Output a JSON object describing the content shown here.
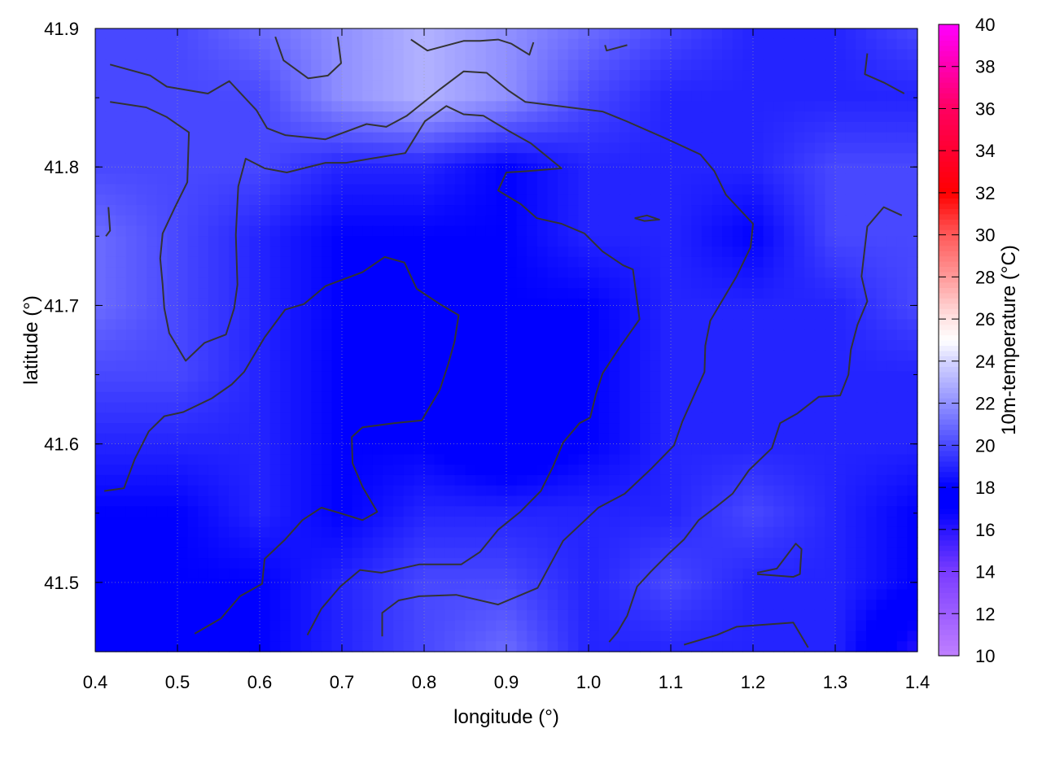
{
  "chart_data": {
    "type": "heatmap",
    "xlabel": "longitude (°)",
    "ylabel": "latitude (°)",
    "colorbar_label": "10m-temperature (°C)",
    "xlim": [
      0.4,
      1.4
    ],
    "ylim": [
      41.45,
      41.9
    ],
    "x_ticks": [
      "0.4",
      "0.5",
      "0.6",
      "0.7",
      "0.8",
      "0.9",
      "1.0",
      "1.1",
      "1.2",
      "1.3",
      "1.4"
    ],
    "y_ticks": [
      "41.5",
      "41.6",
      "41.7",
      "41.8",
      "41.9"
    ],
    "colorbar_range": [
      10,
      40
    ],
    "colorbar_ticks": [
      "10",
      "12",
      "14",
      "16",
      "18",
      "20",
      "22",
      "24",
      "26",
      "28",
      "30",
      "32",
      "34",
      "36",
      "38",
      "40"
    ],
    "colormap": [
      [
        10,
        "#c080ff"
      ],
      [
        14,
        "#7a3cff"
      ],
      [
        17,
        "#0000ff"
      ],
      [
        18,
        "#0000ff"
      ],
      [
        20,
        "#4848ff"
      ],
      [
        22,
        "#9090ff"
      ],
      [
        24,
        "#d4d4ff"
      ],
      [
        25,
        "#ffffff"
      ],
      [
        26,
        "#ffe4e4"
      ],
      [
        28,
        "#ff9a9a"
      ],
      [
        30,
        "#ff5a5a"
      ],
      [
        32,
        "#ff0000"
      ],
      [
        36,
        "#ff0060"
      ],
      [
        40,
        "#ff00ff"
      ]
    ],
    "grid": true,
    "grid_lon": [
      0.4,
      0.5,
      0.6,
      0.7,
      0.8,
      0.9,
      1.0,
      1.1,
      1.2,
      1.3,
      1.4
    ],
    "grid_lat": [
      41.9,
      41.85,
      41.8,
      41.75,
      41.7,
      41.65,
      41.6,
      41.55,
      41.5,
      41.45
    ],
    "values": [
      [
        20,
        20,
        21,
        22,
        23,
        22,
        21,
        20,
        19,
        19,
        20
      ],
      [
        20,
        20,
        20,
        22,
        23,
        22,
        20,
        19,
        19,
        19,
        19
      ],
      [
        20,
        20,
        20,
        19,
        19,
        18,
        19,
        19,
        19,
        20,
        20
      ],
      [
        21,
        20,
        19,
        18,
        18,
        18,
        19,
        19,
        18,
        20,
        20
      ],
      [
        21,
        20,
        19,
        18,
        18,
        18,
        18,
        19,
        19,
        19,
        20
      ],
      [
        20,
        20,
        19,
        18,
        18,
        17,
        18,
        19,
        19,
        19,
        19
      ],
      [
        19,
        19,
        19,
        18,
        18,
        17,
        18,
        19,
        19,
        19,
        19
      ],
      [
        18,
        18,
        19,
        18,
        19,
        19,
        19,
        19,
        20,
        19,
        18
      ],
      [
        18,
        18,
        18,
        19,
        20,
        20,
        19,
        20,
        19,
        19,
        18
      ],
      [
        18,
        18,
        18,
        19,
        20,
        21,
        19,
        19,
        19,
        19,
        16
      ]
    ],
    "contour_color": "#333333",
    "contours": [
      [
        [
          0.418,
          41.874
        ],
        [
          0.467,
          41.866
        ],
        [
          0.487,
          41.858
        ],
        [
          0.537,
          41.853
        ],
        [
          0.563,
          41.862
        ],
        [
          0.596,
          41.841
        ],
        [
          0.609,
          41.828
        ],
        [
          0.631,
          41.823
        ],
        [
          0.68,
          41.82
        ],
        [
          0.73,
          41.831
        ],
        [
          0.754,
          41.829
        ],
        [
          0.779,
          41.837
        ],
        [
          0.819,
          41.856
        ],
        [
          0.848,
          41.869
        ],
        [
          0.876,
          41.868
        ],
        [
          0.903,
          41.855
        ],
        [
          0.923,
          41.847
        ],
        [
          1.017,
          41.84
        ],
        [
          1.046,
          41.833
        ],
        [
          1.096,
          41.82
        ],
        [
          1.136,
          41.809
        ],
        [
          1.153,
          41.797
        ],
        [
          1.167,
          41.78
        ],
        [
          1.2,
          41.759
        ],
        [
          1.197,
          41.742
        ],
        [
          1.18,
          41.721
        ],
        [
          1.148,
          41.689
        ],
        [
          1.142,
          41.671
        ],
        [
          1.141,
          41.652
        ],
        [
          1.114,
          41.616
        ],
        [
          1.104,
          41.599
        ],
        [
          1.076,
          41.582
        ],
        [
          1.044,
          41.564
        ],
        [
          1.012,
          41.554
        ],
        [
          0.969,
          41.53
        ],
        [
          0.938,
          41.496
        ],
        [
          0.89,
          41.484
        ],
        [
          0.839,
          41.491
        ],
        [
          0.794,
          41.49
        ],
        [
          0.769,
          41.487
        ],
        [
          0.749,
          41.478
        ],
        [
          0.749,
          41.461
        ]
      ],
      [
        [
          0.418,
          41.847
        ],
        [
          0.462,
          41.843
        ],
        [
          0.487,
          41.836
        ],
        [
          0.514,
          41.825
        ],
        [
          0.512,
          41.789
        ],
        [
          0.497,
          41.771
        ],
        [
          0.482,
          41.752
        ],
        [
          0.479,
          41.734
        ],
        [
          0.482,
          41.715
        ],
        [
          0.484,
          41.698
        ],
        [
          0.49,
          41.68
        ],
        [
          0.51,
          41.66
        ],
        [
          0.533,
          41.673
        ],
        [
          0.559,
          41.679
        ],
        [
          0.569,
          41.698
        ],
        [
          0.573,
          41.715
        ],
        [
          0.571,
          41.751
        ],
        [
          0.574,
          41.786
        ],
        [
          0.583,
          41.806
        ],
        [
          0.606,
          41.799
        ],
        [
          0.633,
          41.796
        ],
        [
          0.68,
          41.803
        ],
        [
          0.705,
          41.803
        ],
        [
          0.735,
          41.806
        ],
        [
          0.777,
          41.81
        ],
        [
          0.801,
          41.833
        ],
        [
          0.827,
          41.844
        ],
        [
          0.848,
          41.838
        ],
        [
          0.872,
          41.837
        ],
        [
          0.903,
          41.826
        ],
        [
          0.93,
          41.817
        ],
        [
          0.967,
          41.799
        ],
        [
          0.927,
          41.797
        ],
        [
          0.9,
          41.796
        ],
        [
          0.89,
          41.783
        ],
        [
          0.918,
          41.773
        ],
        [
          0.937,
          41.763
        ],
        [
          0.967,
          41.759
        ],
        [
          0.995,
          41.752
        ],
        [
          1.017,
          41.739
        ],
        [
          1.042,
          41.729
        ],
        [
          1.054,
          41.726
        ],
        [
          1.062,
          41.69
        ],
        [
          1.037,
          41.669
        ],
        [
          1.017,
          41.651
        ],
        [
          1.009,
          41.636
        ],
        [
          1.002,
          41.619
        ],
        [
          0.989,
          41.615
        ],
        [
          0.969,
          41.601
        ],
        [
          0.957,
          41.584
        ],
        [
          0.942,
          41.566
        ],
        [
          0.917,
          41.551
        ],
        [
          0.89,
          41.538
        ],
        [
          0.868,
          41.522
        ],
        [
          0.845,
          41.513
        ],
        [
          0.794,
          41.513
        ],
        [
          0.748,
          41.507
        ],
        [
          0.722,
          41.509
        ],
        [
          0.698,
          41.497
        ],
        [
          0.675,
          41.481
        ],
        [
          0.658,
          41.462
        ]
      ],
      [
        [
          0.411,
          41.566
        ],
        [
          0.435,
          41.568
        ],
        [
          0.448,
          41.589
        ],
        [
          0.465,
          41.609
        ],
        [
          0.484,
          41.62
        ],
        [
          0.507,
          41.623
        ],
        [
          0.542,
          41.633
        ],
        [
          0.566,
          41.643
        ],
        [
          0.581,
          41.652
        ],
        [
          0.606,
          41.677
        ],
        [
          0.631,
          41.697
        ],
        [
          0.654,
          41.701
        ],
        [
          0.68,
          41.714
        ],
        [
          0.725,
          41.724
        ],
        [
          0.752,
          41.735
        ],
        [
          0.776,
          41.731
        ],
        [
          0.791,
          41.712
        ],
        [
          0.819,
          41.701
        ],
        [
          0.842,
          41.693
        ],
        [
          0.837,
          41.674
        ],
        [
          0.829,
          41.657
        ],
        [
          0.819,
          41.639
        ],
        [
          0.797,
          41.617
        ],
        [
          0.764,
          41.615
        ],
        [
          0.725,
          41.612
        ],
        [
          0.712,
          41.605
        ],
        [
          0.713,
          41.586
        ],
        [
          0.725,
          41.569
        ],
        [
          0.743,
          41.551
        ],
        [
          0.725,
          41.545
        ],
        [
          0.698,
          41.55
        ],
        [
          0.675,
          41.554
        ],
        [
          0.652,
          41.545
        ],
        [
          0.631,
          41.531
        ],
        [
          0.606,
          41.517
        ],
        [
          0.603,
          41.499
        ],
        [
          0.576,
          41.49
        ],
        [
          0.553,
          41.474
        ],
        [
          0.521,
          41.463
        ]
      ],
      [
        [
          1.339,
          41.882
        ],
        [
          1.336,
          41.867
        ],
        [
          1.359,
          41.861
        ],
        [
          1.384,
          41.853
        ]
      ],
      [
        [
          1.381,
          41.765
        ],
        [
          1.359,
          41.771
        ],
        [
          1.339,
          41.757
        ],
        [
          1.332,
          41.721
        ],
        [
          1.339,
          41.703
        ],
        [
          1.327,
          41.686
        ],
        [
          1.319,
          41.668
        ],
        [
          1.316,
          41.65
        ],
        [
          1.306,
          41.635
        ],
        [
          1.28,
          41.634
        ],
        [
          1.254,
          41.622
        ],
        [
          1.233,
          41.615
        ],
        [
          1.223,
          41.597
        ],
        [
          1.195,
          41.581
        ],
        [
          1.175,
          41.564
        ],
        [
          1.156,
          41.555
        ],
        [
          1.134,
          41.545
        ],
        [
          1.116,
          41.531
        ],
        [
          1.098,
          41.521
        ],
        [
          1.076,
          41.508
        ],
        [
          1.059,
          41.497
        ],
        [
          1.047,
          41.476
        ],
        [
          1.035,
          41.464
        ],
        [
          1.025,
          41.457
        ]
      ],
      [
        [
          1.116,
          41.455
        ],
        [
          1.156,
          41.462
        ],
        [
          1.18,
          41.468
        ],
        [
          1.249,
          41.471
        ],
        [
          1.267,
          41.453
        ]
      ],
      [
        [
          1.205,
          41.507
        ],
        [
          1.229,
          41.51
        ],
        [
          1.252,
          41.528
        ],
        [
          1.259,
          41.524
        ],
        [
          1.257,
          41.506
        ],
        [
          1.249,
          41.504
        ],
        [
          1.205,
          41.506
        ]
      ],
      [
        [
          0.619,
          41.894
        ],
        [
          0.629,
          41.877
        ],
        [
          0.659,
          41.864
        ],
        [
          0.683,
          41.866
        ],
        [
          0.699,
          41.875
        ],
        [
          0.695,
          41.894
        ]
      ],
      [
        [
          0.784,
          41.892
        ],
        [
          0.804,
          41.884
        ],
        [
          0.848,
          41.891
        ],
        [
          0.868,
          41.891
        ],
        [
          0.89,
          41.892
        ],
        [
          0.906,
          41.889
        ],
        [
          0.928,
          41.881
        ],
        [
          0.933,
          41.89
        ]
      ],
      [
        [
          1.02,
          41.888
        ],
        [
          1.022,
          41.884
        ],
        [
          1.047,
          41.888
        ]
      ],
      [
        [
          1.056,
          41.763
        ],
        [
          1.071,
          41.765
        ],
        [
          1.086,
          41.762
        ],
        [
          1.068,
          41.761
        ],
        [
          1.056,
          41.763
        ]
      ],
      [
        [
          0.416,
          41.771
        ],
        [
          0.418,
          41.754
        ],
        [
          0.413,
          41.75
        ]
      ]
    ]
  }
}
